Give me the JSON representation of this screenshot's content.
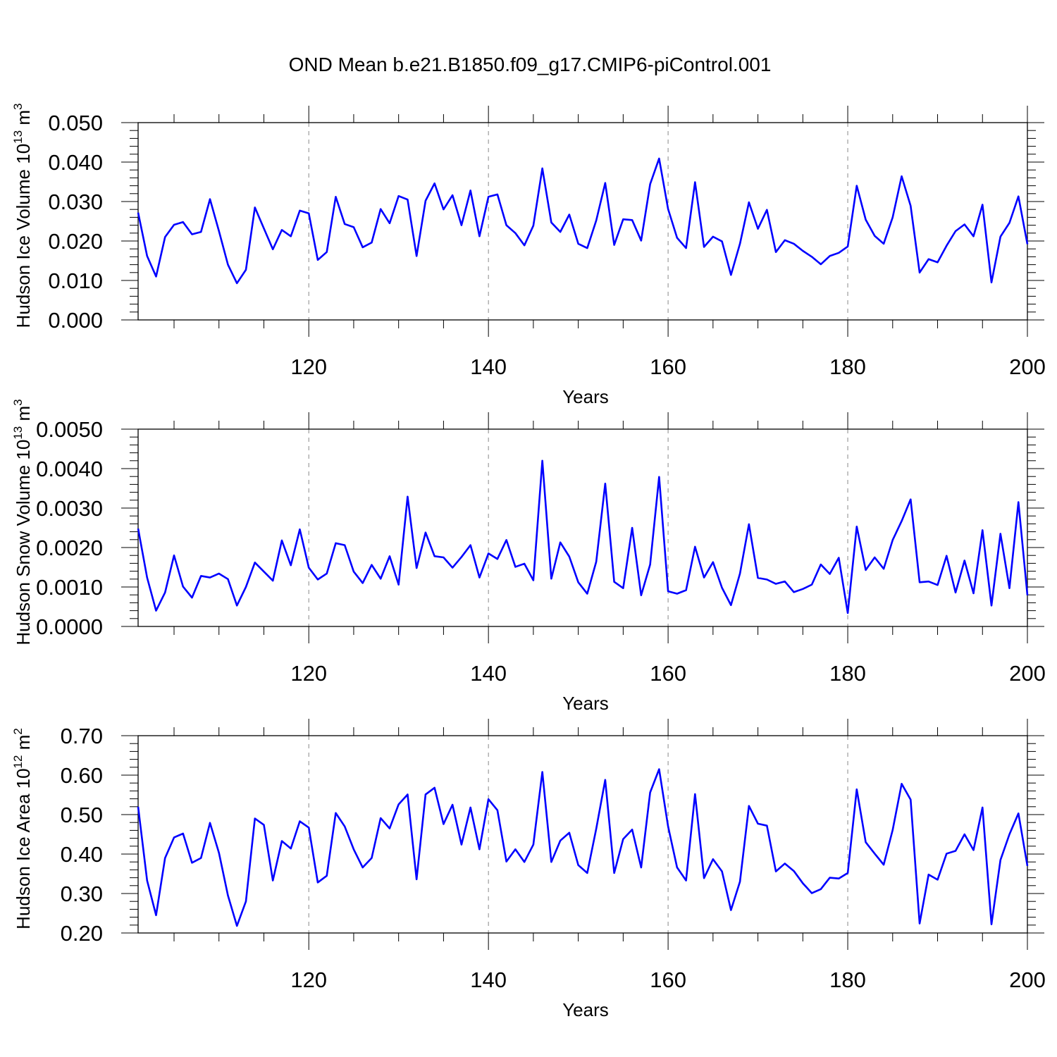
{
  "title": "OND Mean b.e21.B1850.f09_g17.CMIP6-piControl.001",
  "colors": {
    "line": "#0000ff",
    "axis": "#000000",
    "grid": "#888888"
  },
  "chart_data": [
    {
      "type": "line",
      "ylabel": "Hudson Ice Volume 10",
      "ylabel_exp": "13",
      "ylabel_unit": " m",
      "ylabel_unit_exp": "3",
      "xlabel": "Years",
      "xlim": [
        101,
        200
      ],
      "ylim": [
        0,
        0.05
      ],
      "yticks": [
        0,
        0.01,
        0.02,
        0.03,
        0.04,
        0.05
      ],
      "ytick_labels": [
        "0.000",
        "0.010",
        "0.020",
        "0.030",
        "0.040",
        "0.050"
      ],
      "xticks": [
        120,
        140,
        160,
        180,
        200
      ],
      "xtick_labels": [
        "120",
        "140",
        "160",
        "180",
        "200"
      ],
      "grid_x": [
        120,
        140,
        160,
        180
      ],
      "series": [
        {
          "name": "Hudson Ice Volume",
          "x_start": 101,
          "values": [
            0.0272,
            0.0162,
            0.011,
            0.021,
            0.0241,
            0.0248,
            0.0217,
            0.0223,
            0.0306,
            0.0225,
            0.014,
            0.0093,
            0.0127,
            0.0285,
            0.0232,
            0.0179,
            0.0228,
            0.0212,
            0.0277,
            0.027,
            0.0152,
            0.0172,
            0.0312,
            0.0243,
            0.0235,
            0.0184,
            0.0196,
            0.0281,
            0.0245,
            0.0314,
            0.0305,
            0.0162,
            0.0302,
            0.0346,
            0.028,
            0.0316,
            0.024,
            0.0328,
            0.0212,
            0.0312,
            0.0318,
            0.024,
            0.022,
            0.0189,
            0.0239,
            0.0384,
            0.0247,
            0.0223,
            0.0267,
            0.0193,
            0.0182,
            0.0252,
            0.0347,
            0.019,
            0.0255,
            0.0253,
            0.0201,
            0.0344,
            0.0409,
            0.0281,
            0.0208,
            0.0182,
            0.0349,
            0.0185,
            0.0211,
            0.0199,
            0.0114,
            0.0193,
            0.0298,
            0.0231,
            0.0279,
            0.0172,
            0.0202,
            0.0193,
            0.0175,
            0.016,
            0.0141,
            0.0162,
            0.017,
            0.0186,
            0.034,
            0.0254,
            0.0213,
            0.0193,
            0.026,
            0.0364,
            0.0289,
            0.012,
            0.0154,
            0.0146,
            0.0188,
            0.0225,
            0.0242,
            0.0212,
            0.0292,
            0.0095,
            0.0211,
            0.0246,
            0.0313,
            0.0192
          ]
        }
      ]
    },
    {
      "type": "line",
      "ylabel": "Hudson Snow Volume 10",
      "ylabel_exp": "13",
      "ylabel_unit": " m",
      "ylabel_unit_exp": "3",
      "xlabel": "Years",
      "xlim": [
        101,
        200
      ],
      "ylim": [
        0,
        0.005
      ],
      "yticks": [
        0,
        0.001,
        0.002,
        0.003,
        0.004,
        0.005
      ],
      "ytick_labels": [
        "0.0000",
        "0.0010",
        "0.0020",
        "0.0030",
        "0.0040",
        "0.0050"
      ],
      "xticks": [
        120,
        140,
        160,
        180,
        200
      ],
      "xtick_labels": [
        "120",
        "140",
        "160",
        "180",
        "200"
      ],
      "grid_x": [
        120,
        140,
        160,
        180
      ],
      "series": [
        {
          "name": "Hudson Snow Volume",
          "x_start": 101,
          "values": [
            0.00248,
            0.00124,
            0.0004,
            0.00086,
            0.0018,
            0.00101,
            0.00073,
            0.00128,
            0.00124,
            0.00134,
            0.0012,
            0.00053,
            0.001,
            0.00162,
            0.00139,
            0.00116,
            0.00218,
            0.00155,
            0.00246,
            0.00149,
            0.00119,
            0.00134,
            0.00211,
            0.00206,
            0.00139,
            0.0011,
            0.00156,
            0.00121,
            0.00178,
            0.00106,
            0.00329,
            0.00148,
            0.00238,
            0.00178,
            0.00175,
            0.00149,
            0.00176,
            0.00206,
            0.00124,
            0.00185,
            0.00171,
            0.00219,
            0.00151,
            0.00159,
            0.00117,
            0.0042,
            0.00121,
            0.00213,
            0.00177,
            0.00112,
            0.00083,
            0.00164,
            0.00362,
            0.00113,
            0.00097,
            0.0025,
            0.00079,
            0.00157,
            0.00379,
            0.00089,
            0.00083,
            0.00092,
            0.00202,
            0.00124,
            0.00163,
            0.00098,
            0.00054,
            0.00134,
            0.00259,
            0.00123,
            0.00119,
            0.00108,
            0.00114,
            0.00087,
            0.00095,
            0.00106,
            0.00157,
            0.00133,
            0.00174,
            0.00034,
            0.00253,
            0.00143,
            0.00175,
            0.00146,
            0.00219,
            0.00267,
            0.00322,
            0.00112,
            0.00114,
            0.00105,
            0.00179,
            0.00086,
            0.00167,
            0.00084,
            0.00244,
            0.00053,
            0.00235,
            0.00097,
            0.00315,
            0.00079
          ]
        }
      ]
    },
    {
      "type": "line",
      "ylabel": "Hudson Ice Area 10",
      "ylabel_exp": "12",
      "ylabel_unit": " m",
      "ylabel_unit_exp": "2",
      "xlabel": "Years",
      "xlim": [
        101,
        200
      ],
      "ylim": [
        0.2,
        0.7
      ],
      "yticks": [
        0.2,
        0.3,
        0.4,
        0.5,
        0.6,
        0.7
      ],
      "ytick_labels": [
        "0.20",
        "0.30",
        "0.40",
        "0.50",
        "0.60",
        "0.70"
      ],
      "xticks": [
        120,
        140,
        160,
        180,
        200
      ],
      "xtick_labels": [
        "120",
        "140",
        "160",
        "180",
        "200"
      ],
      "grid_x": [
        120,
        140,
        160,
        180
      ],
      "series": [
        {
          "name": "Hudson Ice Area",
          "x_start": 101,
          "values": [
            0.52,
            0.333,
            0.245,
            0.39,
            0.442,
            0.452,
            0.378,
            0.39,
            0.479,
            0.403,
            0.295,
            0.218,
            0.28,
            0.49,
            0.474,
            0.333,
            0.433,
            0.414,
            0.483,
            0.467,
            0.328,
            0.345,
            0.504,
            0.47,
            0.412,
            0.366,
            0.39,
            0.491,
            0.465,
            0.526,
            0.551,
            0.336,
            0.551,
            0.568,
            0.476,
            0.525,
            0.424,
            0.518,
            0.412,
            0.539,
            0.511,
            0.381,
            0.412,
            0.38,
            0.424,
            0.608,
            0.38,
            0.434,
            0.454,
            0.372,
            0.352,
            0.464,
            0.588,
            0.352,
            0.438,
            0.462,
            0.366,
            0.556,
            0.615,
            0.47,
            0.366,
            0.333,
            0.552,
            0.339,
            0.387,
            0.356,
            0.258,
            0.33,
            0.522,
            0.477,
            0.472,
            0.356,
            0.376,
            0.357,
            0.326,
            0.301,
            0.311,
            0.34,
            0.338,
            0.352,
            0.564,
            0.43,
            0.401,
            0.373,
            0.461,
            0.578,
            0.538,
            0.224,
            0.348,
            0.335,
            0.401,
            0.408,
            0.45,
            0.41,
            0.518,
            0.222,
            0.385,
            0.45,
            0.503,
            0.37
          ]
        }
      ]
    }
  ]
}
